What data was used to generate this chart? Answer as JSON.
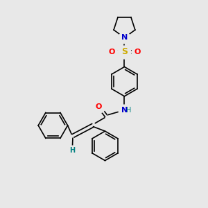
{
  "background_color": "#e8e8e8",
  "figure_size": [
    3.0,
    3.0
  ],
  "dpi": 100,
  "atom_colors": {
    "N": "#0000cc",
    "O": "#ff0000",
    "S": "#ccaa00",
    "C": "#000000",
    "H": "#008080"
  },
  "bond_color": "#000000",
  "bond_width": 1.2,
  "font_size_atoms": 8,
  "font_size_H": 7,
  "xlim": [
    0,
    10
  ],
  "ylim": [
    0,
    10
  ]
}
